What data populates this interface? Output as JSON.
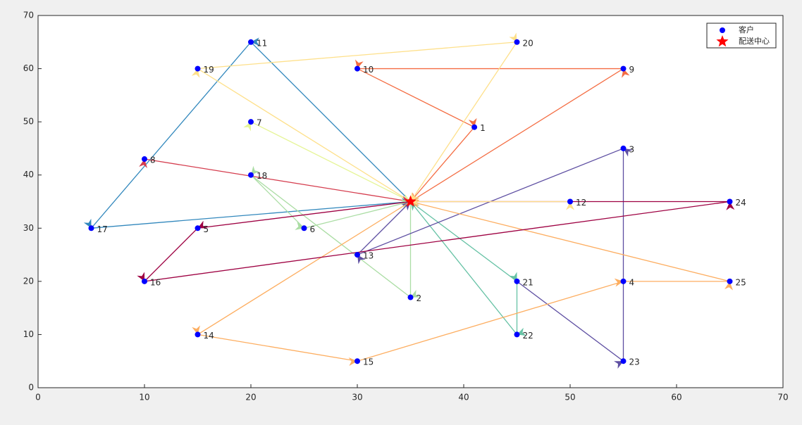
{
  "chart_data": {
    "type": "scatter",
    "xlim": [
      0,
      70
    ],
    "ylim": [
      0,
      70
    ],
    "xticks": [
      0,
      10,
      20,
      30,
      40,
      50,
      60,
      70
    ],
    "yticks": [
      0,
      10,
      20,
      30,
      40,
      50,
      60,
      70
    ],
    "legend": "upper right",
    "series": [
      {
        "name": "客户",
        "color": "#0000ff",
        "marker": "circle",
        "x": [
          41,
          35,
          55,
          55,
          15,
          25,
          20,
          10,
          55,
          30,
          20,
          50,
          30,
          15,
          30,
          10,
          5,
          20,
          15,
          45,
          45,
          45,
          55,
          65,
          65
        ],
        "y": [
          49,
          17,
          45,
          20,
          30,
          30,
          50,
          43,
          60,
          60,
          65,
          35,
          25,
          10,
          5,
          20,
          30,
          40,
          60,
          65,
          20,
          10,
          5,
          35,
          20
        ],
        "labels": [
          "1",
          "2",
          "3",
          "4",
          "5",
          "6",
          "7",
          "8",
          "9",
          "10",
          "11",
          "12",
          "13",
          "14",
          "15",
          "16",
          "17",
          "18",
          "19",
          "20",
          "21",
          "22",
          "23",
          "24",
          "25"
        ]
      },
      {
        "name": "配送中心",
        "color": "#ff0000",
        "marker": "star",
        "x": [
          35
        ],
        "y": [
          35
        ]
      }
    ],
    "routes": [
      {
        "color": "#f46d43",
        "x": [
          35,
          55,
          30,
          41,
          35
        ],
        "y": [
          35,
          60,
          60,
          49,
          35
        ]
      },
      {
        "color": "#3288bd",
        "x": [
          35,
          20,
          5,
          35
        ],
        "y": [
          35,
          65,
          30,
          35
        ]
      },
      {
        "color": "#fee08b",
        "x": [
          35,
          15,
          45,
          35
        ],
        "y": [
          35,
          60,
          65,
          35
        ]
      },
      {
        "color": "#e6f598",
        "x": [
          35,
          20,
          35
        ],
        "y": [
          35,
          50,
          35
        ]
      },
      {
        "color": "#d53e4f",
        "x": [
          35,
          10,
          35
        ],
        "y": [
          35,
          43,
          35
        ]
      },
      {
        "color": "#abdda4",
        "x": [
          35,
          35,
          20,
          25,
          35
        ],
        "y": [
          35,
          17,
          40,
          30,
          35
        ]
      },
      {
        "color": "#66c2a5",
        "x": [
          35,
          45,
          45,
          35
        ],
        "y": [
          35,
          20,
          10,
          35
        ]
      },
      {
        "color": "#5e4fa2",
        "x": [
          45,
          55,
          55,
          30,
          35
        ],
        "y": [
          20,
          5,
          45,
          25,
          35
        ]
      },
      {
        "color": "#fdae61",
        "x": [
          35,
          15,
          30,
          55,
          65,
          35
        ],
        "y": [
          35,
          10,
          5,
          20,
          20,
          35
        ]
      },
      {
        "color": "#9e0142",
        "x": [
          35,
          15,
          10,
          65,
          35
        ],
        "y": [
          35,
          30,
          20,
          35,
          35
        ]
      },
      {
        "color": "#fee08b",
        "x": [
          35,
          50,
          35
        ],
        "y": [
          35,
          35,
          35
        ]
      }
    ]
  }
}
